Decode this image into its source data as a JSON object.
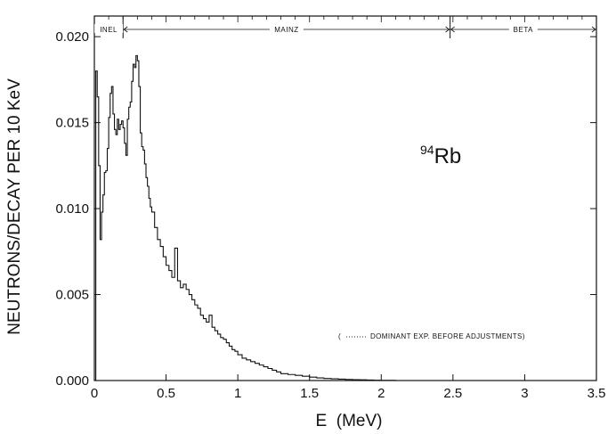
{
  "chart_data": {
    "type": "line",
    "xlabel": "E  (MeV)",
    "ylabel": "NEUTRONS/DECAY PER 10 KeV",
    "xlim": [
      0,
      3.5
    ],
    "ylim": [
      0,
      0.0212
    ],
    "xticks": [
      0,
      0.5,
      1,
      1.5,
      2,
      2.5,
      3,
      3.5
    ],
    "xtick_labels": [
      "0",
      "0.5",
      "1",
      "1.5",
      "2",
      "2.5",
      "3",
      "3.5"
    ],
    "yticks": [
      0,
      0.005,
      0.01,
      0.015,
      0.02
    ],
    "ytick_labels": [
      "0.000",
      "0.005",
      "0.010",
      "0.015",
      "0.020"
    ],
    "grid": false,
    "annotation": {
      "nuclide_mass": "94",
      "nuclide_symbol": "Rb",
      "note_open": "(",
      "note_text": "DOMINANT EXP. BEFORE ADJUSTMENTS)"
    },
    "bands": [
      {
        "label": "INEL",
        "from": 0.0,
        "to": 0.2
      },
      {
        "label": "MAINZ",
        "from": 0.2,
        "to": 2.48
      },
      {
        "label": "BETA",
        "from": 2.48,
        "to": 3.5
      }
    ],
    "series": [
      {
        "x": [
          0.0,
          0.01,
          0.02,
          0.03,
          0.04,
          0.05,
          0.06,
          0.07,
          0.08,
          0.09,
          0.1,
          0.11,
          0.12,
          0.13,
          0.14,
          0.15,
          0.16,
          0.17,
          0.18,
          0.19,
          0.2,
          0.21,
          0.22,
          0.23,
          0.24,
          0.25,
          0.26,
          0.27,
          0.28,
          0.29,
          0.3,
          0.31,
          0.32,
          0.33,
          0.34,
          0.35,
          0.36,
          0.37,
          0.38,
          0.39,
          0.4,
          0.42,
          0.44,
          0.46,
          0.48,
          0.5,
          0.52,
          0.54,
          0.56,
          0.58,
          0.6,
          0.62,
          0.64,
          0.66,
          0.68,
          0.7,
          0.72,
          0.74,
          0.76,
          0.78,
          0.8,
          0.82,
          0.84,
          0.86,
          0.88,
          0.9,
          0.92,
          0.94,
          0.96,
          0.98,
          1.0,
          1.03,
          1.06,
          1.09,
          1.12,
          1.15,
          1.18,
          1.21,
          1.24,
          1.27,
          1.3,
          1.35,
          1.4,
          1.45,
          1.5,
          1.55,
          1.6,
          1.65,
          1.7,
          1.75,
          1.8,
          1.85,
          1.9,
          1.95,
          2.0,
          2.1,
          2.2,
          2.3,
          2.4,
          2.5
        ],
        "y": [
          0.0,
          0.018,
          0.0165,
          0.0125,
          0.0082,
          0.0098,
          0.0108,
          0.0121,
          0.0122,
          0.0135,
          0.0153,
          0.0167,
          0.0171,
          0.0155,
          0.0146,
          0.0143,
          0.0152,
          0.0146,
          0.0149,
          0.0151,
          0.0147,
          0.0138,
          0.0131,
          0.0152,
          0.0159,
          0.0162,
          0.0174,
          0.0184,
          0.0182,
          0.0189,
          0.0186,
          0.0171,
          0.0144,
          0.0136,
          0.0134,
          0.0126,
          0.0118,
          0.0113,
          0.0106,
          0.0101,
          0.0098,
          0.0089,
          0.0082,
          0.0078,
          0.0072,
          0.0067,
          0.0064,
          0.006,
          0.0077,
          0.0058,
          0.0054,
          0.0056,
          0.0053,
          0.005,
          0.0047,
          0.0044,
          0.0042,
          0.0038,
          0.0036,
          0.0034,
          0.0038,
          0.0031,
          0.0029,
          0.0027,
          0.0025,
          0.0024,
          0.0022,
          0.002,
          0.0018,
          0.0017,
          0.0015,
          0.0013,
          0.0012,
          0.0011,
          0.001,
          0.0009,
          0.0008,
          0.0007,
          0.0006,
          0.0005,
          0.0004,
          0.00035,
          0.0003,
          0.00025,
          0.0002,
          0.00015,
          0.00012,
          0.0001,
          8e-05,
          6e-05,
          5e-05,
          4e-05,
          3e-05,
          2e-05,
          1e-05,
          0.0,
          0.0,
          0.0,
          0.0,
          0.0
        ]
      }
    ]
  }
}
